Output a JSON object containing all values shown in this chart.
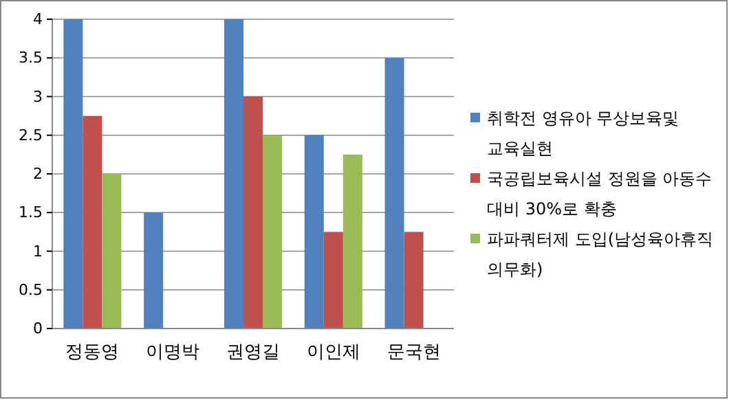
{
  "chart_data": {
    "type": "bar",
    "categories": [
      "정동영",
      "이명박",
      "권영길",
      "이인제",
      "문국현"
    ],
    "series": [
      {
        "name": "취학전 영유아 무상보육및 교육실현",
        "color": "#4f81bd",
        "values": [
          4,
          1.5,
          4,
          2.5,
          3.5
        ]
      },
      {
        "name": "국공립보육시설 정원을 아동수 대비 30%로 확충",
        "color": "#c0504d",
        "values": [
          2.75,
          null,
          3,
          1.25,
          1.25
        ]
      },
      {
        "name": "파파쿼터제 도입(남성육아휴직 의무화)",
        "color": "#9bbb59",
        "values": [
          2,
          null,
          2.5,
          2.25,
          null
        ]
      }
    ],
    "ylim": [
      0,
      4
    ],
    "yticks": [
      0,
      0.5,
      1,
      1.5,
      2,
      2.5,
      3,
      3.5,
      4
    ],
    "grid": "y",
    "legend": "right"
  }
}
